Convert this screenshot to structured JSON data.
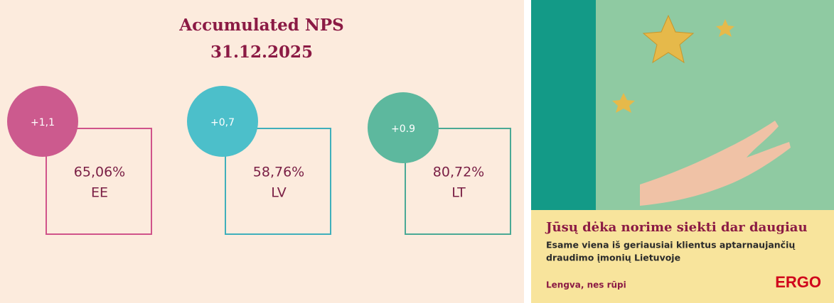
{
  "header": {
    "title": "Accumulated NPS",
    "date": "31.12.2025"
  },
  "cards": [
    {
      "change": "+1,1",
      "value": "65,06%",
      "country": "EE"
    },
    {
      "change": "+0,7",
      "value": "58,76%",
      "country": "LV"
    },
    {
      "change": "+0.9",
      "value": "80,72%",
      "country": "LT"
    }
  ],
  "ad": {
    "headline": "Jūsų dėka norime siekti dar daugiau",
    "body_lines": [
      "Esame viena iš geriausiai klientus aptarnaujančių",
      "draudimo įmonių Lietuvoje"
    ],
    "slogan": "Lengva, nes rūpi",
    "brand": "ERGO"
  }
}
